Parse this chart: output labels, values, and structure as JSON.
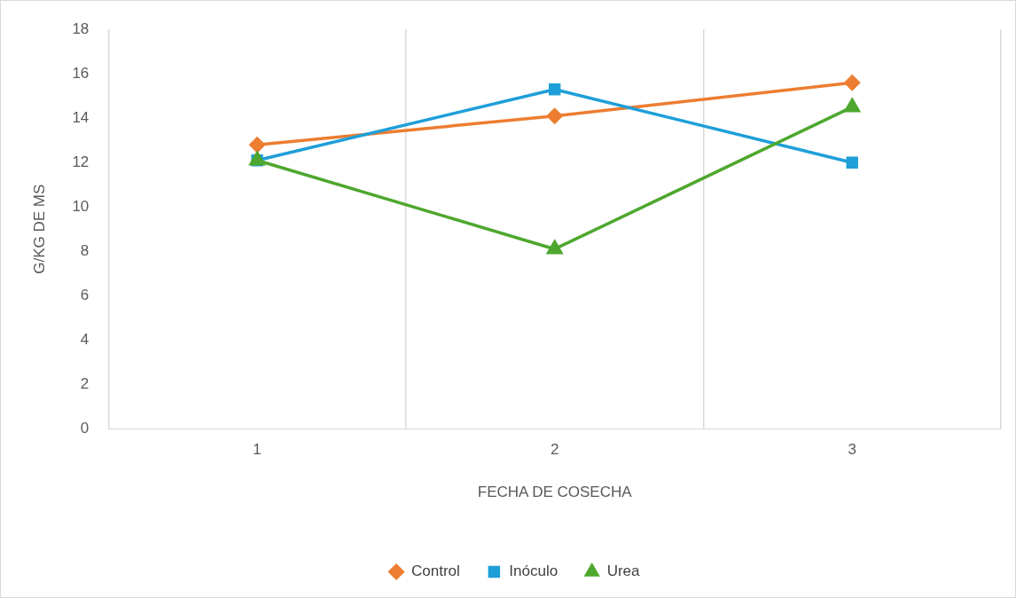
{
  "chart_data": {
    "type": "line",
    "xlabel": "FECHA DE COSECHA",
    "ylabel": "G/KG DE MS",
    "categories": [
      "1",
      "2",
      "3"
    ],
    "series": [
      {
        "name": "Control",
        "color": "#ed7d31",
        "marker": "diamond",
        "values": [
          12.8,
          14.1,
          15.6
        ]
      },
      {
        "name": "Inóculo",
        "color": "#1e9fd8",
        "marker": "square",
        "values": [
          12.1,
          15.3,
          12.0
        ]
      },
      {
        "name": "Urea",
        "color": "#4ea72e",
        "marker": "triangle",
        "values": [
          12.1,
          8.1,
          14.5
        ]
      }
    ],
    "ylim": [
      0,
      18
    ],
    "yticks": [
      0,
      2,
      4,
      6,
      8,
      10,
      12,
      14,
      16,
      18
    ],
    "grid": "x",
    "legend": "bottom",
    "line_style": "solid"
  }
}
